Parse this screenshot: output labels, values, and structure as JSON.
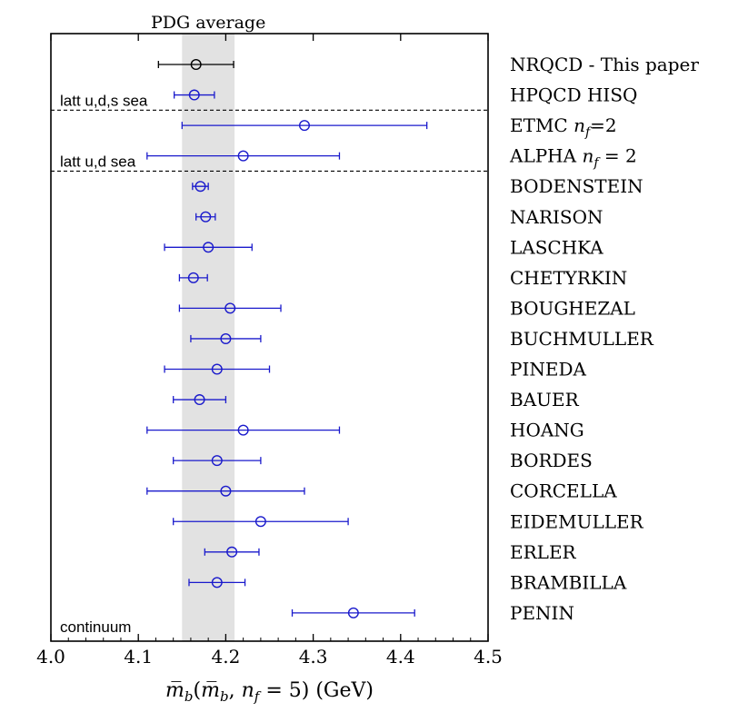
{
  "chart_data": {
    "type": "scatter",
    "subtype": "forest-plot-with-horizontal-error-bars",
    "band": {
      "label": "PDG average",
      "x_range": [
        4.15,
        4.21
      ]
    },
    "xlim": [
      4.0,
      4.5
    ],
    "xticks": [
      4.0,
      4.1,
      4.2,
      4.3,
      4.4,
      4.5
    ],
    "xtick_labels": [
      "4.0",
      "4.1",
      "4.2",
      "4.3",
      "4.4",
      "4.5"
    ],
    "xlabel": "m̄b(m̄b, nf = 5) (GeV)",
    "group_labels": [
      {
        "text": "latt u,d,s sea",
        "after_row": 1
      },
      {
        "text": "latt u,d sea",
        "after_row": 3
      },
      {
        "text": "continuum",
        "after_row": 18
      }
    ],
    "series": [
      {
        "label": "NRQCD - This paper",
        "value": 4.166,
        "err_low": 0.043,
        "err_high": 0.043,
        "color": "#000000"
      },
      {
        "label": "HPQCD HISQ",
        "value": 4.164,
        "err_low": 0.023,
        "err_high": 0.023,
        "color": "#1a1acc"
      },
      {
        "label": "ETMC nf=2",
        "value": 4.29,
        "err_low": 0.14,
        "err_high": 0.14,
        "color": "#1a1acc"
      },
      {
        "label": "ALPHA nf = 2",
        "value": 4.22,
        "err_low": 0.11,
        "err_high": 0.11,
        "color": "#1a1acc"
      },
      {
        "label": "BODENSTEIN",
        "value": 4.171,
        "err_low": 0.009,
        "err_high": 0.009,
        "color": "#1a1acc"
      },
      {
        "label": "NARISON",
        "value": 4.177,
        "err_low": 0.011,
        "err_high": 0.011,
        "color": "#1a1acc"
      },
      {
        "label": "LASCHKA",
        "value": 4.18,
        "err_low": 0.05,
        "err_high": 0.05,
        "color": "#1a1acc"
      },
      {
        "label": "CHETYRKIN",
        "value": 4.163,
        "err_low": 0.016,
        "err_high": 0.016,
        "color": "#1a1acc"
      },
      {
        "label": "BOUGHEZAL",
        "value": 4.205,
        "err_low": 0.058,
        "err_high": 0.058,
        "color": "#1a1acc"
      },
      {
        "label": "BUCHMULLER",
        "value": 4.2,
        "err_low": 0.04,
        "err_high": 0.04,
        "color": "#1a1acc"
      },
      {
        "label": "PINEDA",
        "value": 4.19,
        "err_low": 0.06,
        "err_high": 0.06,
        "color": "#1a1acc"
      },
      {
        "label": "BAUER",
        "value": 4.17,
        "err_low": 0.03,
        "err_high": 0.03,
        "color": "#1a1acc"
      },
      {
        "label": "HOANG",
        "value": 4.22,
        "err_low": 0.11,
        "err_high": 0.11,
        "color": "#1a1acc"
      },
      {
        "label": "BORDES",
        "value": 4.19,
        "err_low": 0.05,
        "err_high": 0.05,
        "color": "#1a1acc"
      },
      {
        "label": "CORCELLA",
        "value": 4.2,
        "err_low": 0.09,
        "err_high": 0.09,
        "color": "#1a1acc"
      },
      {
        "label": "EIDEMULLER",
        "value": 4.24,
        "err_low": 0.1,
        "err_high": 0.1,
        "color": "#1a1acc"
      },
      {
        "label": "ERLER",
        "value": 4.207,
        "err_low": 0.031,
        "err_high": 0.031,
        "color": "#1a1acc"
      },
      {
        "label": "BRAMBILLA",
        "value": 4.19,
        "err_low": 0.032,
        "err_high": 0.032,
        "color": "#1a1acc"
      },
      {
        "label": "PENIN",
        "value": 4.346,
        "err_low": 0.07,
        "err_high": 0.07,
        "color": "#1a1acc"
      }
    ],
    "grid": false,
    "legend": "none"
  }
}
